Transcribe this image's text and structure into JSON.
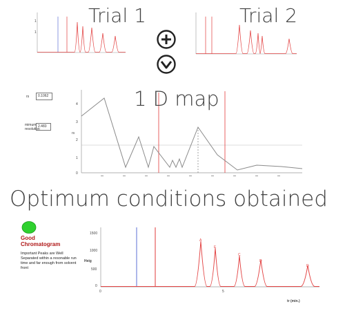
{
  "labels": {
    "trial1": "Trial 1",
    "trial2": "Trial 2",
    "map_title": "1 D map",
    "optimum": "Optimum conditions obtained",
    "good": "Good",
    "chromatogram": "Chromatogram",
    "note": "Important Peaks are Well Separated within a resonable run time and far enough from solvent front",
    "map_field1_label": "rs",
    "map_field1_value": "0.1062",
    "map_field2_label": "mimum resolution",
    "map_field2_value": "2.483",
    "map_yaxis": "rs",
    "main_yaxis": "Heig",
    "main_xaxis": "tr (min.)"
  },
  "icons": {
    "plus": "plus-circle-icon",
    "down": "chevron-down-circle-icon",
    "status": "green-dot-icon"
  },
  "colors": {
    "peak": "#e34545",
    "marker_red": "#e23a3a",
    "marker_blue": "#5b6fd6",
    "map_line": "#8a8a8a",
    "status_green": "#2fd12f",
    "good_text": "#b01818"
  },
  "main_chart": {
    "y_ticks": [
      "1500",
      "1000",
      "500",
      "0"
    ],
    "x_ticks": [
      "0",
      "5"
    ],
    "peak_labels": [
      "A",
      "E",
      "C",
      "D",
      "D"
    ]
  },
  "map_chart": {
    "y_ticks": [
      "4",
      "3",
      "2",
      "1",
      "0"
    ]
  }
}
